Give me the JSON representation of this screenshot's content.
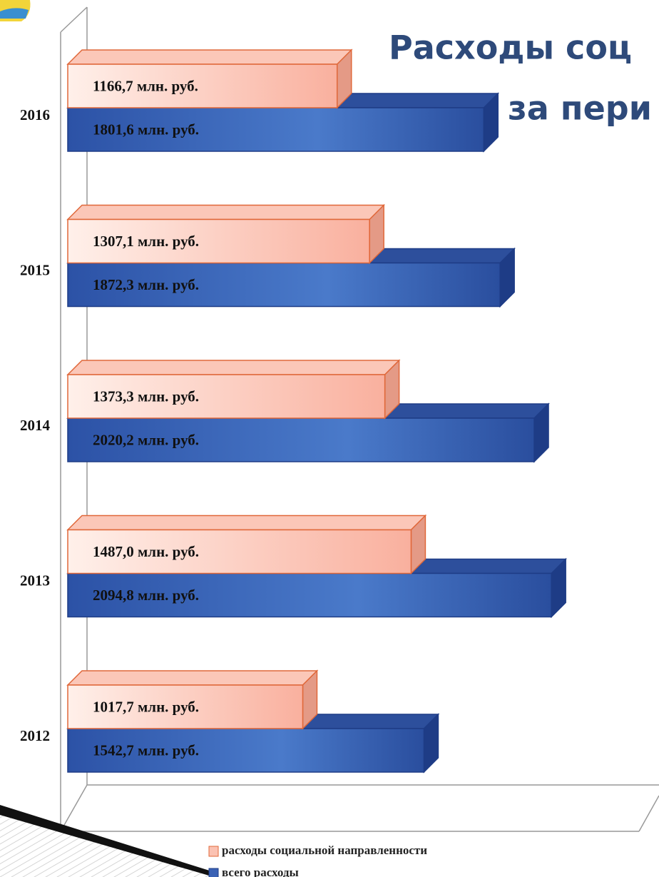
{
  "chart_data": {
    "type": "bar3d_horizontal",
    "title_lines": [
      "Расходы соц",
      "за пери"
    ],
    "categories": [
      "2012",
      "2013",
      "2014",
      "2015",
      "2016"
    ],
    "series": [
      {
        "name": "расходы социальной направленности",
        "color": "#f9b5a3",
        "values": [
          1017.7,
          1487.0,
          1373.3,
          1307.1,
          1166.7
        ],
        "value_labels": [
          "1017,7 млн. руб.",
          "1487,0 млн. руб.",
          "1373,3 млн. руб.",
          "1307,1 млн. руб.",
          "1166,7 млн. руб."
        ]
      },
      {
        "name": "всего расходы",
        "color": "#3a62b5",
        "values": [
          1542.7,
          2094.8,
          2020.2,
          1872.3,
          1801.6
        ],
        "value_labels": [
          "1542,7 млн. руб.",
          "2094,8 млн. руб.",
          "2020,2 млн. руб.",
          "1872,3 млн. руб.",
          "1801,6 млн. руб."
        ]
      }
    ],
    "xlim": [
      0,
      2400
    ],
    "legend": "bottom"
  }
}
